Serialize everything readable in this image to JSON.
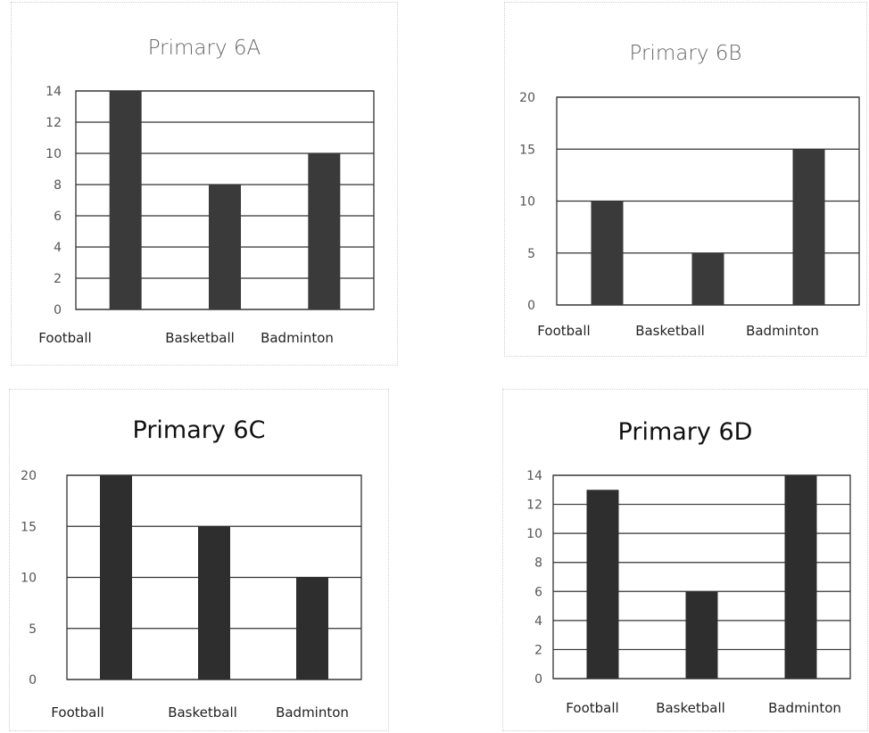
{
  "chart_data": [
    {
      "type": "bar",
      "title": "Primary 6A",
      "categories": [
        "Football",
        "Basketball",
        "Badminton"
      ],
      "values": [
        14,
        8,
        10
      ],
      "yticks": [
        "0",
        "2",
        "4",
        "6",
        "8",
        "10",
        "12",
        "14"
      ],
      "ylim": [
        0,
        14
      ],
      "grid": true,
      "bar_color": "#3a3a3a"
    },
    {
      "type": "bar",
      "title": "Primary 6B",
      "categories": [
        "Football",
        "Basketball",
        "Badminton"
      ],
      "values": [
        10,
        5,
        15
      ],
      "yticks": [
        "0",
        "5",
        "10",
        "15",
        "20"
      ],
      "ylim": [
        0,
        20
      ],
      "grid": true,
      "bar_color": "#3a3a3a"
    },
    {
      "type": "bar",
      "title": "Primary 6C",
      "categories": [
        "Football",
        "Basketball",
        "Badminton"
      ],
      "values": [
        20,
        15,
        10
      ],
      "yticks": [
        "0",
        "5",
        "10",
        "15",
        "20"
      ],
      "ylim": [
        0,
        20
      ],
      "grid": true,
      "bar_color": "#2e2e2e"
    },
    {
      "type": "bar",
      "title": "Primary 6D",
      "categories": [
        "Football",
        "Basketball",
        "Badminton"
      ],
      "values": [
        13,
        6,
        14
      ],
      "yticks": [
        "0",
        "2",
        "4",
        "6",
        "8",
        "10",
        "12",
        "14"
      ],
      "ylim": [
        0,
        14
      ],
      "grid": true,
      "bar_color": "#2e2e2e"
    }
  ]
}
